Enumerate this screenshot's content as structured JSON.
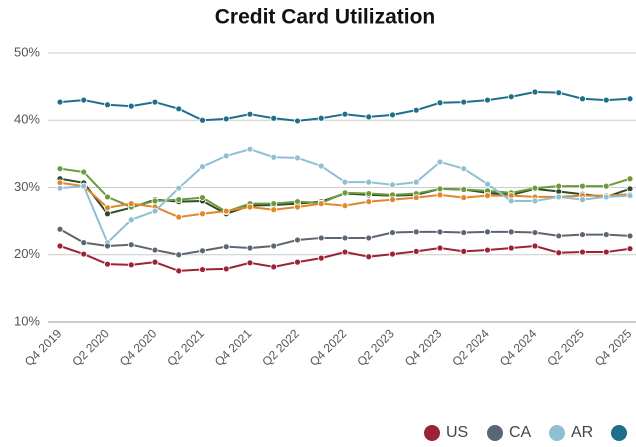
{
  "chart_data": {
    "type": "line",
    "title": "Credit Card Utilization",
    "categories": [
      "Q4 2019",
      null,
      "Q2 2020",
      null,
      "Q4 2020",
      null,
      "Q2 2021",
      null,
      "Q4 2021",
      null,
      "Q2 2022",
      null,
      "Q4 2022",
      null,
      "Q2 2023",
      null,
      "Q4 2023",
      null,
      "Q2 2024",
      null,
      "Q4 2024",
      null,
      "Q2 2025",
      null,
      "Q4 2025"
    ],
    "series": [
      {
        "name": "US",
        "color": "#9b2335",
        "values": [
          21.3,
          20.1,
          18.6,
          18.5,
          18.9,
          17.6,
          17.8,
          17.9,
          18.8,
          18.2,
          18.9,
          19.5,
          20.4,
          19.7,
          20.1,
          20.5,
          21.0,
          20.5,
          20.7,
          21.0,
          21.3,
          20.3,
          20.4,
          20.4,
          20.9
        ]
      },
      {
        "name": "CA",
        "color": "#5c6670",
        "values": [
          23.8,
          21.8,
          21.3,
          21.5,
          20.7,
          20.0,
          20.6,
          21.2,
          21.0,
          21.3,
          22.2,
          22.5,
          22.5,
          22.5,
          23.3,
          23.4,
          23.4,
          23.3,
          23.4,
          23.4,
          23.3,
          22.8,
          23.0,
          23.0,
          22.8
        ]
      },
      {
        "name": "AR",
        "color": "#8fbfd3",
        "values": [
          29.9,
          30.2,
          21.8,
          25.2,
          26.5,
          29.9,
          33.1,
          34.7,
          35.7,
          34.5,
          34.4,
          33.2,
          30.8,
          30.8,
          30.4,
          30.8,
          33.8,
          32.8,
          30.5,
          28.0,
          28.0,
          28.6,
          28.2,
          28.6,
          28.8
        ]
      },
      {
        "color": "#1f6e8c",
        "values": [
          42.7,
          43.0,
          42.3,
          42.1,
          42.7,
          41.7,
          40.0,
          40.2,
          40.9,
          40.3,
          39.9,
          40.3,
          40.9,
          40.5,
          40.8,
          41.5,
          42.6,
          42.7,
          43.0,
          43.5,
          44.2,
          44.1,
          43.2,
          43.0,
          43.2
        ]
      },
      {
        "color": "#e0872b",
        "values": [
          30.7,
          30.2,
          27.0,
          27.6,
          27.1,
          25.6,
          26.1,
          26.5,
          27.1,
          26.7,
          27.1,
          27.6,
          27.3,
          27.9,
          28.2,
          28.5,
          28.9,
          28.5,
          28.8,
          28.8,
          28.6,
          28.6,
          28.8,
          28.8,
          29.0
        ]
      },
      {
        "color": "#6b9a3c",
        "values": [
          32.8,
          32.3,
          28.6,
          27.1,
          28.0,
          28.2,
          28.5,
          26.4,
          27.6,
          27.6,
          27.9,
          27.7,
          29.2,
          29.1,
          28.9,
          29.1,
          29.8,
          29.7,
          29.5,
          29.2,
          29.9,
          30.2,
          30.2,
          30.2,
          31.3
        ]
      },
      {
        "color": "#2e4a28",
        "values": [
          31.3,
          30.7,
          26.1,
          27.0,
          28.2,
          27.9,
          28.0,
          26.1,
          27.3,
          27.4,
          27.6,
          27.9,
          29.1,
          28.9,
          28.8,
          28.9,
          29.8,
          29.7,
          29.2,
          28.9,
          29.8,
          29.4,
          29.0,
          28.6,
          29.8
        ]
      }
    ],
    "ylim": [
      10,
      50
    ],
    "yticks": [
      {
        "value": 10,
        "label": "10%"
      },
      {
        "value": 20,
        "label": "20%"
      },
      {
        "value": 30,
        "label": "30%"
      },
      {
        "value": 40,
        "label": "40%"
      },
      {
        "value": 50,
        "label": "50%"
      }
    ],
    "grid": true,
    "legend": "bottom"
  }
}
